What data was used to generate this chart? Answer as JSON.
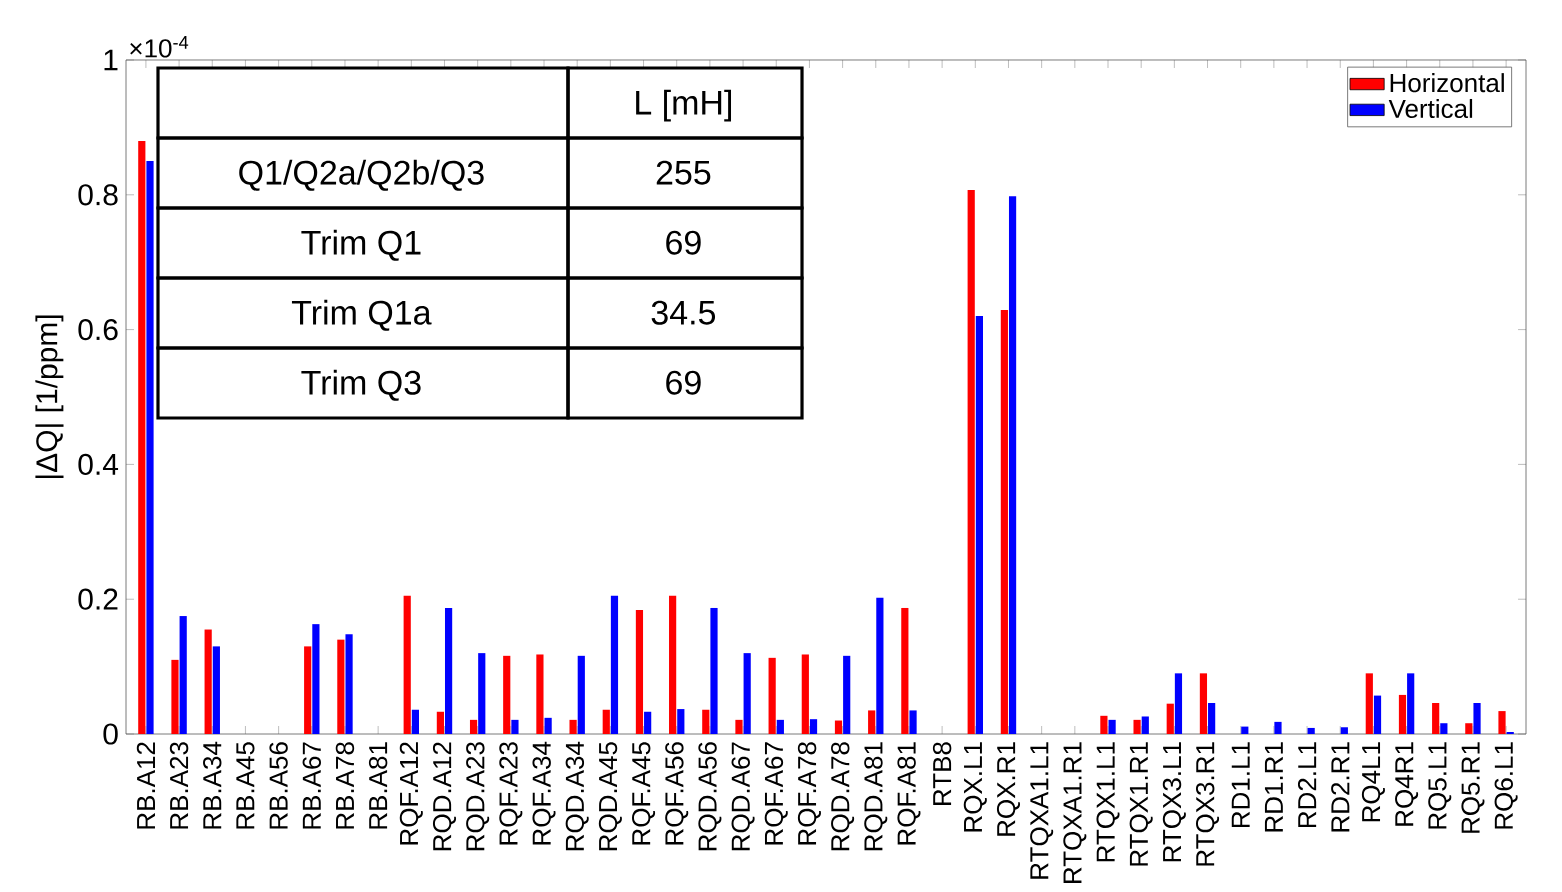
{
  "chart_data": {
    "type": "bar",
    "ylabel": "|ΔQ| [1/ppm]",
    "legend": "top right",
    "categories": [
      "RB.A12",
      "RB.A23",
      "RB.A34",
      "RB.A45",
      "RB.A56",
      "RB.A67",
      "RB.A78",
      "RB.A81",
      "RQF.A12",
      "RQD.A12",
      "RQD.A23",
      "RQF.A23",
      "RQF.A34",
      "RQD.A34",
      "RQD.A45",
      "RQF.A45",
      "RQF.A56",
      "RQD.A56",
      "RQD.A67",
      "RQF.A67",
      "RQF.A78",
      "RQD.A78",
      "RQD.A81",
      "RQF.A81",
      "RTB8",
      "RQX.L1",
      "RQX.R1",
      "RTQXA1.L1",
      "RTQXA1.R1",
      "RTQX1.L1",
      "RTQX1.R1",
      "RTQX3.L1",
      "RTQX3.R1",
      "RD1.L1",
      "RD1.R1",
      "RD2.L1",
      "RD2.R1",
      "RQ4L1",
      "RQ4R1",
      "RQ5.L1",
      "RQ5.R1",
      "RQ6.L1"
    ],
    "series": [
      {
        "name": "Horizontal",
        "color": "#ff0000",
        "values": [
          0.88,
          0.11,
          0.155,
          null,
          null,
          0.13,
          0.14,
          null,
          0.205,
          0.033,
          0.021,
          0.116,
          0.118,
          0.021,
          0.036,
          0.184,
          0.205,
          0.036,
          0.021,
          0.113,
          0.118,
          0.02,
          0.035,
          0.187,
          0,
          0.807,
          0.629,
          0,
          0,
          0.027,
          0.021,
          0.045,
          0.09,
          0,
          0,
          0,
          0,
          0.09,
          0.058,
          0.046,
          0.016,
          0.034
        ]
      },
      {
        "name": "Vertical",
        "color": "#0000ff",
        "values": [
          0.85,
          0.175,
          0.13,
          null,
          null,
          0.163,
          0.148,
          null,
          0.036,
          0.187,
          0.12,
          0.021,
          0.024,
          0.116,
          0.205,
          0.033,
          0.037,
          0.187,
          0.12,
          0.021,
          0.022,
          0.116,
          0.202,
          0.035,
          0,
          0.62,
          0.798,
          0,
          0,
          0.021,
          0.026,
          0.09,
          0.046,
          0.011,
          0.018,
          0.009,
          0.01,
          0.057,
          0.09,
          0.016,
          0.046,
          0.003
        ]
      }
    ],
    "ylim": [
      0,
      1
    ],
    "yticks": [
      0,
      0.2,
      0.4,
      0.6,
      0.8,
      1
    ],
    "annotations": [
      "×10$^{-4}$",
      "L [mH]",
      "Q1/Q2a/Q2b/Q3",
      "255",
      "Trim Q1",
      "69",
      "Trim Q1a",
      "34.5",
      "Trim Q3",
      "69"
    ]
  }
}
